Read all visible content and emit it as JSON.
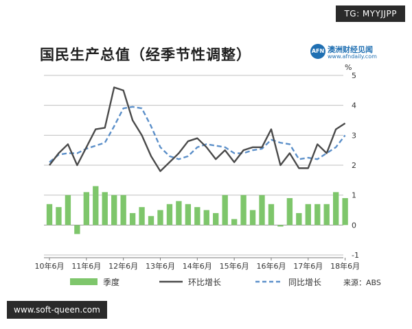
{
  "badges": {
    "telegram": "TG: MYYJJPP",
    "site": "www.soft-queen.com"
  },
  "title": "国民生产总值（经季节性调整）",
  "logo": {
    "mark": "AFN",
    "name": "澳洲财经见闻",
    "url": "www.afndaily.com"
  },
  "source": "来源：ABS",
  "colors": {
    "bar": "#7ec66b",
    "line": "#4a4a4a",
    "dashed": "#5b8fc9",
    "grid": "#bfbfbf"
  },
  "chart_data": {
    "type": "bar",
    "title": "国民生产总值（经季节性调整）",
    "y_unit": "%",
    "ylim": [
      -1,
      5
    ],
    "yticks": [
      "-1",
      "0",
      "1",
      "2",
      "3",
      "4",
      "5"
    ],
    "x_tick_labels": [
      "10年6月",
      "11年6月",
      "12年6月",
      "13年6月",
      "14年6月",
      "15年6月",
      "16年6月",
      "17年6月",
      "18年6月"
    ],
    "grid": true,
    "legend_position": "bottom",
    "series": [
      {
        "name": "季度",
        "type": "bar",
        "values": [
          0.7,
          0.6,
          1.0,
          -0.3,
          1.1,
          1.3,
          1.1,
          1.0,
          1.0,
          0.4,
          0.6,
          0.3,
          0.5,
          0.7,
          0.8,
          0.7,
          0.6,
          0.5,
          0.4,
          1.0,
          0.2,
          1.0,
          0.5,
          1.0,
          0.7,
          -0.05,
          0.9,
          0.4,
          0.7,
          0.7,
          0.7,
          1.1,
          0.9
        ]
      },
      {
        "name": "环比增长",
        "type": "line",
        "values": [
          2.0,
          2.4,
          2.7,
          2.0,
          2.6,
          3.2,
          3.25,
          4.6,
          4.5,
          3.5,
          3.0,
          2.3,
          1.8,
          2.1,
          2.4,
          2.8,
          2.9,
          2.6,
          2.2,
          2.5,
          2.1,
          2.5,
          2.6,
          2.6,
          3.2,
          2.0,
          2.4,
          1.9,
          1.9,
          2.7,
          2.4,
          3.2,
          3.4
        ]
      },
      {
        "name": "同比增长",
        "type": "dashed-line",
        "values": [
          2.1,
          2.35,
          2.4,
          2.4,
          2.55,
          2.65,
          2.75,
          3.3,
          3.9,
          3.95,
          3.9,
          3.3,
          2.6,
          2.3,
          2.2,
          2.3,
          2.6,
          2.7,
          2.65,
          2.6,
          2.4,
          2.4,
          2.5,
          2.55,
          2.85,
          2.75,
          2.7,
          2.2,
          2.25,
          2.2,
          2.4,
          2.6,
          3.0
        ]
      }
    ]
  }
}
